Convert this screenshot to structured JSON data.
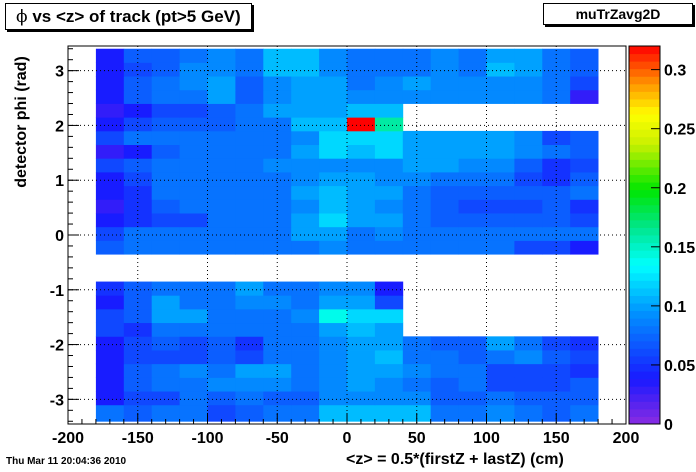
{
  "title": "vs <z> of track (pt>5 GeV)",
  "title_symbol": "ϕ",
  "stats_label": "muTrZavg2D",
  "footer_date": "Thu Mar 11 20:04:36 2010",
  "chart_data": {
    "type": "heatmap",
    "xlabel": "<z> = 0.5*(firstZ + lastZ) (cm)",
    "ylabel": "detector phi (rad)",
    "xlim": [
      -200,
      200
    ],
    "ylim": [
      -3.45,
      3.45
    ],
    "xticks": [
      "-200",
      "-150",
      "-100",
      "-50",
      "0",
      "50",
      "100",
      "150",
      "200"
    ],
    "yticks": [
      "-3",
      "-2",
      "-1",
      "0",
      "1",
      "2",
      "3"
    ],
    "zlim": [
      0,
      0.32
    ],
    "zticks": [
      "0",
      "0.05",
      "0.1",
      "0.15",
      "0.2",
      "0.25",
      "0.3"
    ],
    "grid": true,
    "x_bin_edges": [
      -180,
      -160,
      -140,
      -120,
      -100,
      -80,
      -60,
      -40,
      -20,
      0,
      20,
      40,
      60,
      80,
      100,
      120,
      140,
      160,
      180
    ],
    "y_bin_edges": [
      -3.4,
      -3.1,
      -2.85,
      -2.6,
      -2.35,
      -2.1,
      -1.85,
      -1.6,
      -1.35,
      -1.1,
      -0.85,
      -0.6,
      -0.35,
      -0.1,
      0.15,
      0.4,
      0.65,
      0.9,
      1.15,
      1.4,
      1.65,
      1.9,
      2.15,
      2.4,
      2.65,
      2.9,
      3.15,
      3.4
    ],
    "values": [
      [
        0.08,
        0.07,
        0.08,
        0.08,
        0.06,
        0.07,
        0.08,
        0.08,
        0.11,
        0.11,
        0.11,
        0.11,
        0.08,
        0.08,
        0.09,
        0.08,
        0.07,
        0.08
      ],
      [
        0.04,
        0.06,
        0.06,
        0.08,
        0.07,
        0.08,
        0.07,
        0.07,
        0.09,
        0.09,
        0.09,
        0.09,
        0.07,
        0.07,
        0.08,
        0.07,
        0.07,
        0.07
      ],
      [
        0.04,
        0.07,
        0.08,
        0.08,
        0.09,
        0.09,
        0.09,
        0.08,
        0.09,
        0.1,
        0.09,
        0.08,
        0.07,
        0.08,
        0.06,
        0.06,
        0.06,
        0.07
      ],
      [
        0.04,
        0.07,
        0.08,
        0.09,
        0.08,
        0.1,
        0.1,
        0.08,
        0.09,
        0.1,
        0.1,
        0.09,
        0.08,
        0.08,
        0.06,
        0.06,
        0.06,
        0.05
      ],
      [
        0.04,
        0.06,
        0.06,
        0.06,
        0.07,
        0.06,
        0.08,
        0.08,
        0.09,
        0.1,
        0.11,
        0.08,
        0.08,
        0.07,
        0.08,
        0.09,
        0.07,
        0.06
      ],
      [
        0.04,
        0.06,
        0.07,
        0.06,
        0.07,
        0.05,
        0.08,
        0.08,
        0.09,
        0.1,
        0.1,
        0.08,
        0.07,
        0.07,
        0.1,
        0.08,
        0.06,
        0.05
      ],
      [
        0.06,
        0.05,
        0.08,
        0.08,
        0.08,
        0.08,
        0.08,
        0.08,
        0.1,
        0.11,
        0.1,
        null,
        null,
        null,
        null,
        null,
        null,
        null
      ],
      [
        0.06,
        0.07,
        0.1,
        0.1,
        0.08,
        0.08,
        0.08,
        0.09,
        0.14,
        0.12,
        0.12,
        null,
        null,
        null,
        null,
        null,
        null,
        null
      ],
      [
        0.04,
        0.07,
        0.1,
        0.08,
        0.08,
        0.09,
        0.09,
        0.08,
        0.1,
        0.1,
        0.06,
        null,
        null,
        null,
        null,
        null,
        null,
        null
      ],
      [
        0.05,
        0.07,
        0.08,
        0.08,
        0.08,
        0.1,
        0.08,
        0.08,
        0.09,
        0.09,
        0.04,
        null,
        null,
        null,
        null,
        null,
        null,
        null
      ],
      [
        null,
        null,
        null,
        null,
        null,
        null,
        null,
        null,
        null,
        null,
        null,
        null,
        null,
        null,
        null,
        null,
        null,
        null
      ],
      [
        null,
        null,
        null,
        null,
        null,
        null,
        null,
        null,
        null,
        null,
        null,
        null,
        null,
        null,
        null,
        null,
        null,
        null
      ],
      [
        0.07,
        0.08,
        0.08,
        0.08,
        0.08,
        0.08,
        0.08,
        0.08,
        0.09,
        0.08,
        0.08,
        0.08,
        0.08,
        0.08,
        0.08,
        0.06,
        0.06,
        0.04
      ],
      [
        0.06,
        0.08,
        0.08,
        0.08,
        0.08,
        0.08,
        0.08,
        0.1,
        0.1,
        0.08,
        0.09,
        0.08,
        0.08,
        0.08,
        0.08,
        0.08,
        0.08,
        0.08
      ],
      [
        0.04,
        0.05,
        0.06,
        0.06,
        0.08,
        0.08,
        0.08,
        0.1,
        0.12,
        0.1,
        0.1,
        0.08,
        0.07,
        0.07,
        0.07,
        0.07,
        0.07,
        0.06
      ],
      [
        0.03,
        0.05,
        0.07,
        0.08,
        0.08,
        0.08,
        0.08,
        0.09,
        0.11,
        0.1,
        0.09,
        0.08,
        0.07,
        0.06,
        0.06,
        0.06,
        0.07,
        0.05
      ],
      [
        0.04,
        0.05,
        0.08,
        0.08,
        0.08,
        0.08,
        0.08,
        0.1,
        0.11,
        0.1,
        0.1,
        0.08,
        0.07,
        0.07,
        0.07,
        0.07,
        0.07,
        0.08
      ],
      [
        0.04,
        0.06,
        0.08,
        0.08,
        0.08,
        0.08,
        0.08,
        0.09,
        0.1,
        0.1,
        0.09,
        0.09,
        0.08,
        0.08,
        0.08,
        0.06,
        0.05,
        0.07
      ],
      [
        0.06,
        0.07,
        0.08,
        0.08,
        0.08,
        0.08,
        0.09,
        0.09,
        0.09,
        0.09,
        0.09,
        0.1,
        0.1,
        0.09,
        0.09,
        0.07,
        0.05,
        0.06
      ],
      [
        0.03,
        0.04,
        0.07,
        0.08,
        0.08,
        0.08,
        0.08,
        0.1,
        0.12,
        0.11,
        0.12,
        0.1,
        0.1,
        0.1,
        0.1,
        0.09,
        0.08,
        0.07
      ],
      [
        0.06,
        0.08,
        0.08,
        0.08,
        0.08,
        0.08,
        0.08,
        0.09,
        0.12,
        0.12,
        0.12,
        0.1,
        0.1,
        0.1,
        0.1,
        0.09,
        0.06,
        0.07
      ],
      [
        0.04,
        0.06,
        0.07,
        0.07,
        0.07,
        0.08,
        0.08,
        0.11,
        0.11,
        0.32,
        0.16,
        null,
        null,
        null,
        null,
        null,
        null,
        null
      ],
      [
        0.03,
        0.04,
        0.06,
        0.06,
        0.07,
        0.08,
        0.1,
        0.1,
        0.1,
        0.11,
        0.11,
        null,
        null,
        null,
        null,
        null,
        null,
        null
      ],
      [
        0.04,
        0.07,
        0.08,
        0.08,
        0.1,
        0.07,
        0.09,
        0.1,
        0.1,
        0.09,
        0.09,
        0.09,
        0.09,
        0.09,
        0.09,
        0.09,
        0.08,
        0.03
      ],
      [
        0.04,
        0.07,
        0.08,
        0.09,
        0.1,
        0.07,
        0.09,
        0.1,
        0.1,
        0.08,
        0.09,
        0.1,
        0.09,
        0.09,
        0.09,
        0.09,
        0.08,
        0.06
      ],
      [
        0.04,
        0.06,
        0.07,
        0.09,
        0.09,
        0.08,
        0.11,
        0.11,
        0.09,
        0.08,
        0.08,
        0.08,
        0.09,
        0.08,
        0.11,
        0.1,
        0.08,
        0.07
      ],
      [
        0.04,
        0.07,
        0.07,
        0.08,
        0.09,
        0.08,
        0.11,
        0.11,
        0.09,
        0.08,
        0.08,
        0.08,
        0.09,
        0.08,
        0.1,
        0.1,
        0.08,
        0.07
      ]
    ]
  }
}
